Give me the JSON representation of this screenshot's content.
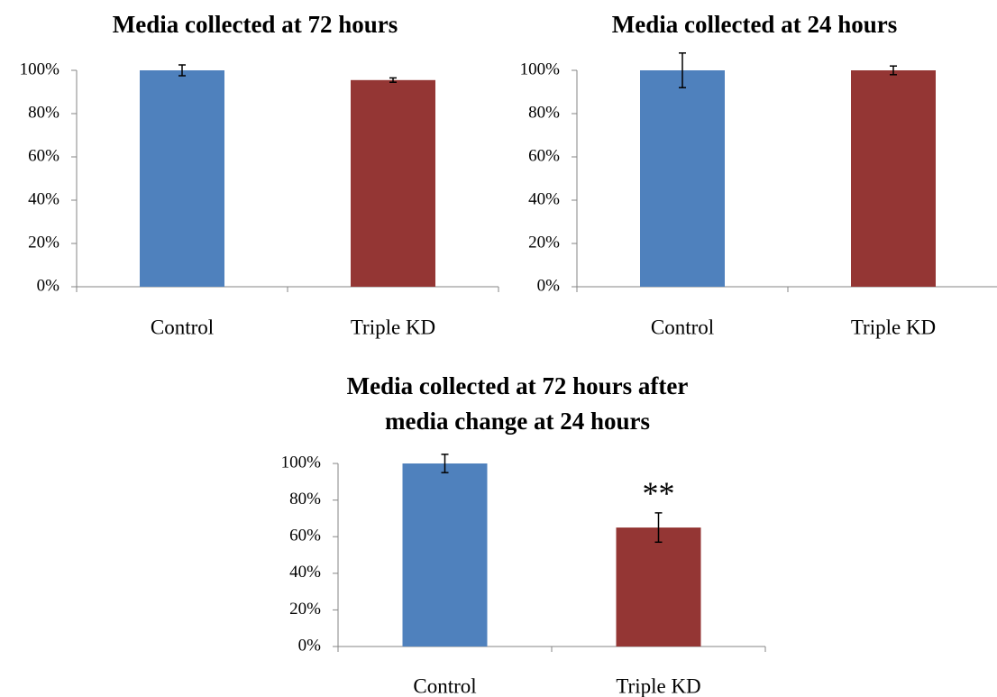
{
  "chart_data": [
    {
      "type": "bar",
      "title": "Media collected at 72 hours",
      "categories": [
        "Control",
        "Triple KD"
      ],
      "values": [
        100,
        95.5
      ],
      "errors": [
        2.5,
        1
      ],
      "colors": [
        "#4F81BD",
        "#943634"
      ],
      "ylim": [
        0,
        100
      ],
      "yticks": [
        0,
        20,
        40,
        60,
        80,
        100
      ],
      "ytick_labels": [
        "0%",
        "20%",
        "40%",
        "60%",
        "80%",
        "100%"
      ],
      "annotations": [],
      "grid": false
    },
    {
      "type": "bar",
      "title": "Media collected at 24 hours",
      "categories": [
        "Control",
        "Triple KD"
      ],
      "values": [
        100,
        100
      ],
      "errors": [
        8,
        2
      ],
      "colors": [
        "#4F81BD",
        "#943634"
      ],
      "ylim": [
        0,
        100
      ],
      "yticks": [
        0,
        20,
        40,
        60,
        80,
        100
      ],
      "ytick_labels": [
        "0%",
        "20%",
        "40%",
        "60%",
        "80%",
        "100%"
      ],
      "annotations": [],
      "grid": false
    },
    {
      "type": "bar",
      "title": [
        "Media collected at 72 hours after",
        "media change at 24 hours"
      ],
      "categories": [
        "Control",
        "Triple KD"
      ],
      "values": [
        100,
        65
      ],
      "errors": [
        5,
        8
      ],
      "colors": [
        "#4F81BD",
        "#943634"
      ],
      "ylim": [
        0,
        100
      ],
      "yticks": [
        0,
        20,
        40,
        60,
        80,
        100
      ],
      "ytick_labels": [
        "0%",
        "20%",
        "40%",
        "60%",
        "80%",
        "100%"
      ],
      "annotations": [
        "",
        "**"
      ],
      "grid": false
    }
  ]
}
